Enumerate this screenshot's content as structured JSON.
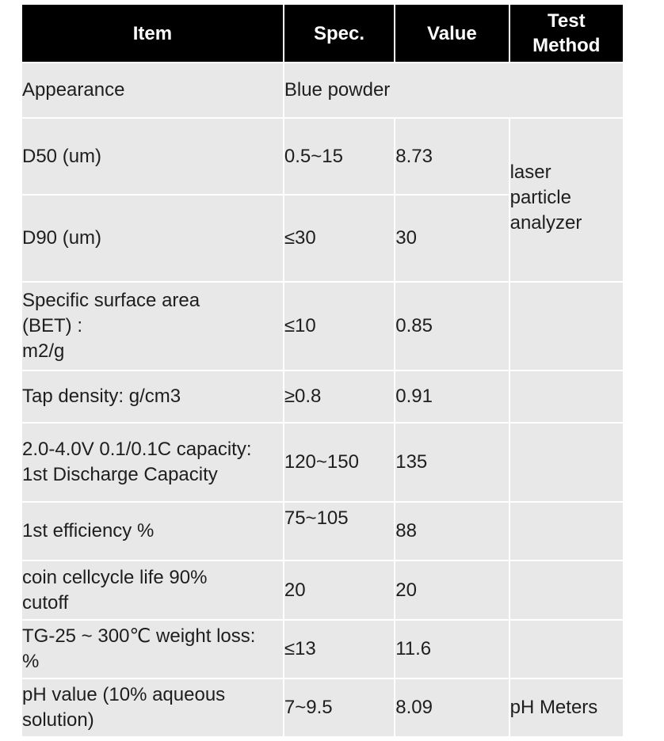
{
  "headers": [
    "Item",
    "Spec.",
    "Value",
    "Test\nMethod"
  ],
  "rows": [
    {
      "item": "Appearance",
      "spec_value_merged": "Blue powder"
    },
    {
      "item": "D50 (um)",
      "spec": "0.5~15",
      "value": "8.73",
      "test": "laser\nparticle\nanalyzer"
    },
    {
      "item": "D90 (um)",
      "spec": "≤30",
      "value": "30"
    },
    {
      "item": "Specific surface area\n(BET) :\nm2/g",
      "spec": "≤10",
      "value": "0.85",
      "test": ""
    },
    {
      "item": "Tap density: g/cm3",
      "spec": "≥0.8",
      "value": "0.91",
      "test": ""
    },
    {
      "item": "2.0-4.0V 0.1/0.1C capacity:\n1st Discharge Capacity",
      "spec": "120~150",
      "value": "135",
      "test": ""
    },
    {
      "item": "1st  efficiency %",
      "spec": "75~105",
      "value": "88",
      "test": ""
    },
    {
      "item": "coin cellcycle life 90%\ncutoff",
      "spec": "20",
      "value": "20",
      "test": ""
    },
    {
      "item": "TG-25 ~ 300℃ weight loss:\n%",
      "spec": "≤13",
      "value": "11.6",
      "test": ""
    },
    {
      "item": "pH value (10% aqueous\nsolution)",
      "spec": "7~9.5",
      "value": "8.09",
      "test": "pH Meters"
    }
  ]
}
